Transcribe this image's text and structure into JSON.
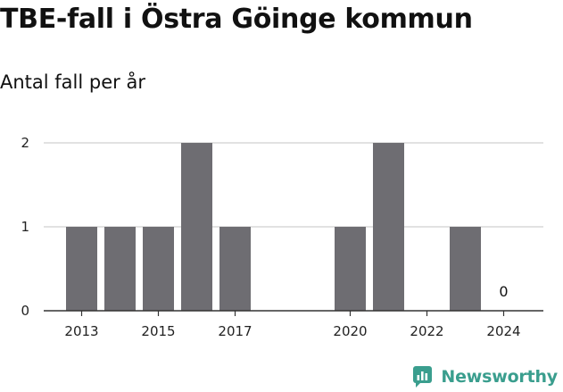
{
  "title": "TBE-fall i Östra Göinge kommun",
  "subtitle": "Antal fall per år",
  "brand": {
    "name": "Newsworthy",
    "icon": "newsworthy-logo-icon",
    "color": "#3a9e8e"
  },
  "chart_data": {
    "type": "bar",
    "categories": [
      "2013",
      "2014",
      "2015",
      "2016",
      "2017",
      "2018",
      "2019",
      "2020",
      "2021",
      "2022",
      "2023",
      "2024"
    ],
    "values": [
      1,
      1,
      1,
      2,
      1,
      0,
      0,
      1,
      2,
      0,
      1,
      0
    ],
    "x_tick_labels": [
      "2013",
      "2015",
      "2017",
      "2020",
      "2022",
      "2024"
    ],
    "y_ticks": [
      0,
      1,
      2
    ],
    "ylim": [
      0,
      2
    ],
    "annotations": [
      {
        "category": "2024",
        "text": "0"
      }
    ],
    "bar_color": "#6e6d72",
    "grid_color": "#d9d9d9",
    "grid": true,
    "legend": "none"
  }
}
